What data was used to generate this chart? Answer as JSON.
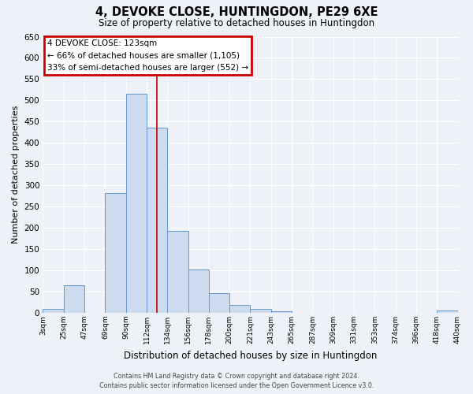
{
  "title": "4, DEVOKE CLOSE, HUNTINGDON, PE29 6XE",
  "subtitle": "Size of property relative to detached houses in Huntingdon",
  "xlabel": "Distribution of detached houses by size in Huntingdon",
  "ylabel": "Number of detached properties",
  "bin_edges": [
    3,
    25,
    47,
    69,
    90,
    112,
    134,
    156,
    178,
    200,
    221,
    243,
    265,
    287,
    309,
    331,
    353,
    374,
    396,
    418,
    440
  ],
  "bin_labels": [
    "3sqm",
    "25sqm",
    "47sqm",
    "69sqm",
    "90sqm",
    "112sqm",
    "134sqm",
    "156sqm",
    "178sqm",
    "200sqm",
    "221sqm",
    "243sqm",
    "265sqm",
    "287sqm",
    "309sqm",
    "331sqm",
    "353sqm",
    "374sqm",
    "396sqm",
    "418sqm",
    "440sqm"
  ],
  "bar_heights": [
    10,
    65,
    0,
    282,
    515,
    435,
    192,
    102,
    46,
    18,
    10,
    3,
    0,
    0,
    0,
    0,
    0,
    0,
    0,
    5
  ],
  "bar_facecolor": "#ccdcee",
  "bar_edgecolor": "#6699cc",
  "vline_x": 123,
  "vline_color": "#cc0000",
  "ylim": [
    0,
    650
  ],
  "yticks": [
    0,
    50,
    100,
    150,
    200,
    250,
    300,
    350,
    400,
    450,
    500,
    550,
    600,
    650
  ],
  "annotation_title": "4 DEVOKE CLOSE: 123sqm",
  "annotation_line1": "← 66% of detached houses are smaller (1,105)",
  "annotation_line2": "33% of semi-detached houses are larger (552) →",
  "annotation_box_edgecolor": "#cc0000",
  "footer1": "Contains HM Land Registry data © Crown copyright and database right 2024.",
  "footer2": "Contains public sector information licensed under the Open Government Licence v3.0.",
  "background_color": "#eef2f8",
  "grid_color": "#ffffff",
  "figsize": [
    6.0,
    5.0
  ],
  "dpi": 100
}
